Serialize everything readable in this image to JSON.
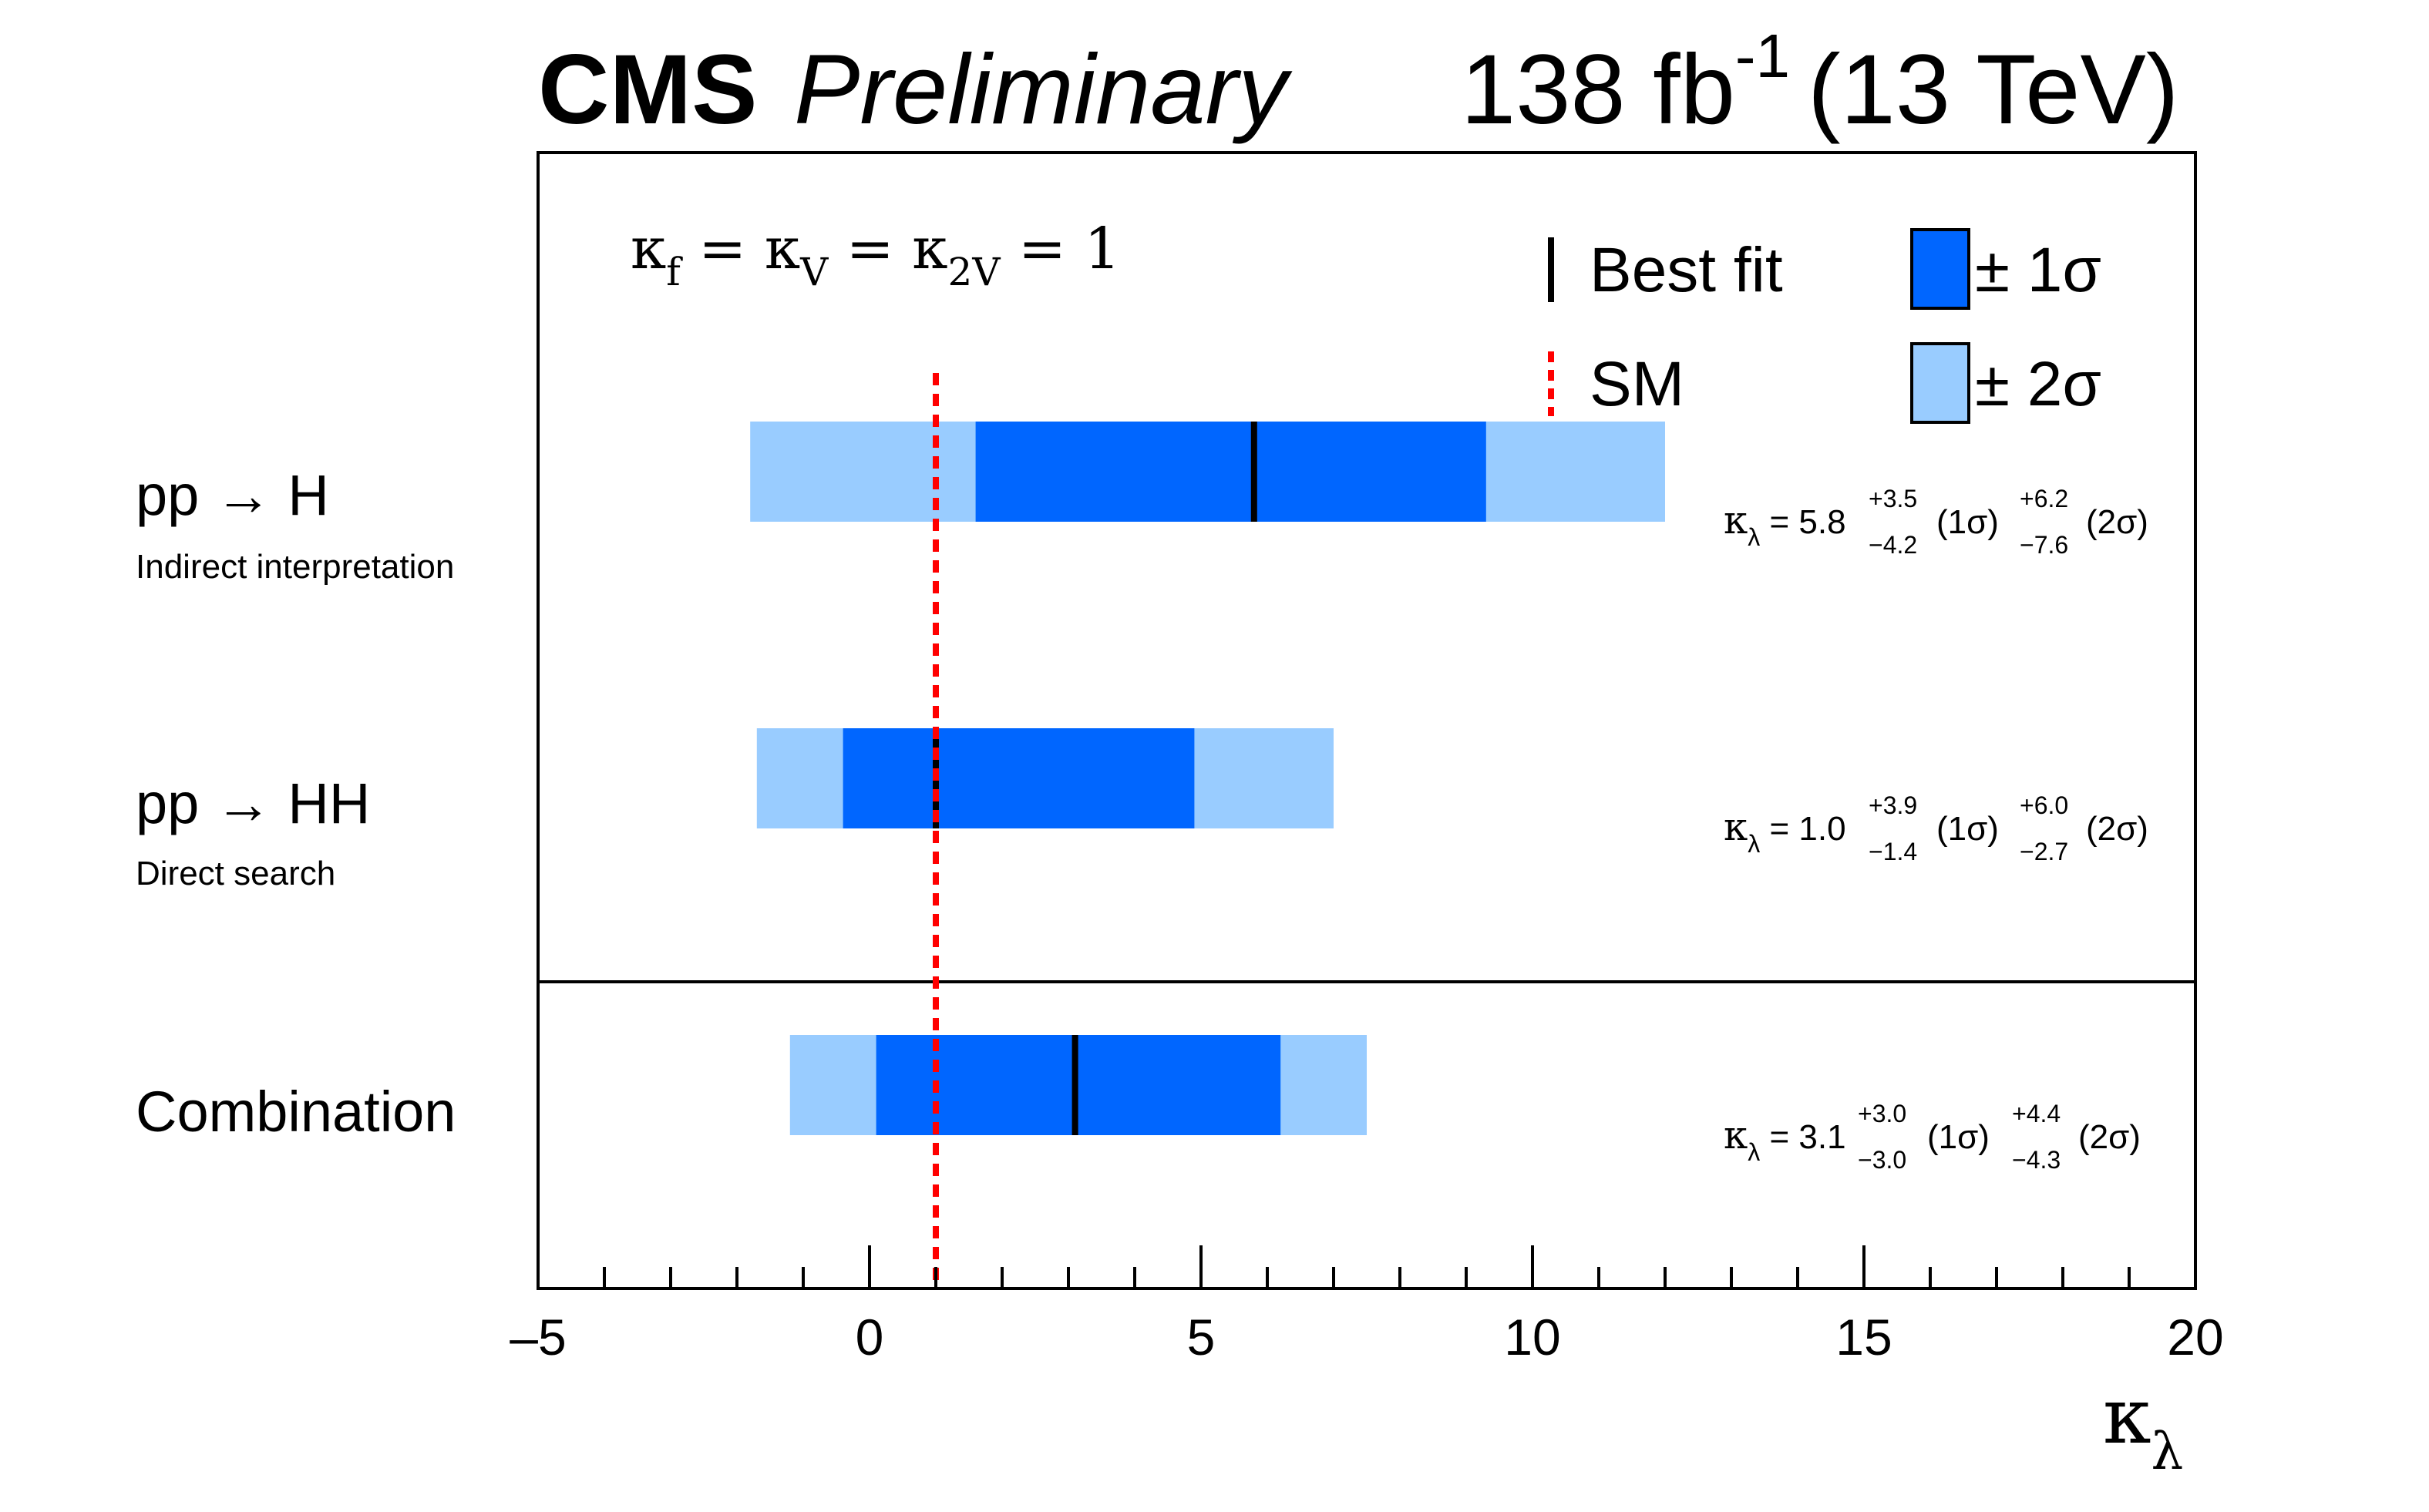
{
  "header": {
    "experiment": "CMS",
    "status": "Preliminary",
    "lumi_value": "138 fb",
    "lumi_exp": "-1",
    "energy": "(13 TeV)"
  },
  "condition": {
    "k1": "κ",
    "k1_sub": "f",
    "k2": "κ",
    "k2_sub": "V",
    "k3": "κ",
    "k3_sub": "2V",
    "eq": "=",
    "rhs": "= 1"
  },
  "legend": {
    "best_fit": "Best fit",
    "sm": "SM",
    "one_sigma": "± 1σ",
    "two_sigma": "± 2σ"
  },
  "colors": {
    "one_sigma": "#0066ff",
    "two_sigma": "#99ccff",
    "best_fit": "#000000",
    "sm": "#ff0000"
  },
  "chart_data": {
    "type": "interval",
    "xlabel_symbol": "κ",
    "xlabel_sub": "λ",
    "xlim": [
      -5,
      20
    ],
    "x_ticks": [
      -5,
      0,
      5,
      10,
      15,
      20
    ],
    "x_tick_labels": [
      "–5",
      "0",
      "5",
      "10",
      "15",
      "20"
    ],
    "x_minor_step": 1,
    "sm_value": 1,
    "rows": [
      {
        "title": "pp → H",
        "subtitle": "Indirect interpretation",
        "best": 5.8,
        "one_sigma": [
          1.6,
          9.3
        ],
        "two_sigma": [
          -1.8,
          12.0
        ],
        "result_text": {
          "value": "= 5.8",
          "up1": "+3.5",
          "down1": "−4.2",
          "label1": "(1σ)",
          "up2": "+6.2",
          "down2": "−7.6",
          "label2": "(2σ)"
        }
      },
      {
        "title": "pp → HH",
        "subtitle": "Direct search",
        "best": 1.0,
        "one_sigma": [
          -0.4,
          4.9
        ],
        "two_sigma": [
          -1.7,
          7.0
        ],
        "result_text": {
          "value": "= 1.0",
          "up1": "+3.9",
          "down1": "−1.4",
          "label1": "(1σ)",
          "up2": "+6.0",
          "down2": "−2.7",
          "label2": "(2σ)"
        }
      },
      {
        "title": "Combination",
        "subtitle": "",
        "best": 3.1,
        "one_sigma": [
          0.1,
          6.2
        ],
        "two_sigma": [
          -1.2,
          7.5
        ],
        "result_text": {
          "value": "= 3.1",
          "up1": "+3.0",
          "down1": "−3.0",
          "label1": "(1σ)",
          "up2": "+4.4",
          "down2": "−4.3",
          "label2": "(2σ)"
        }
      }
    ]
  }
}
